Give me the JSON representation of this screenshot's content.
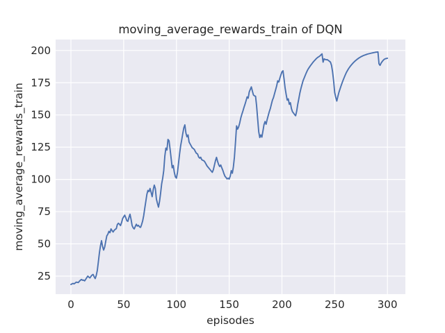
{
  "figure": {
    "background_color": "#ffffff",
    "axes_background_color": "#eaeaf2",
    "grid_color": "#ffffff",
    "text_color": "#262626"
  },
  "chart_data": {
    "type": "line",
    "title": "moving_average_rewards_train of DQN",
    "xlabel": "episodes",
    "ylabel": "moving_average_rewards_train",
    "grid": true,
    "legend": null,
    "x_ticks": [
      0,
      50,
      100,
      150,
      200,
      250,
      300
    ],
    "y_ticks": [
      25,
      50,
      75,
      100,
      125,
      150,
      175,
      200
    ],
    "xlim": [
      -14.5,
      317
    ],
    "ylim": [
      11,
      208.5
    ],
    "series": [
      {
        "name": "moving_average_rewards_train",
        "color": "#4c72b0",
        "points": [
          [
            0,
            18.5
          ],
          [
            1,
            19
          ],
          [
            2,
            19.3
          ],
          [
            3,
            19
          ],
          [
            4,
            19.6
          ],
          [
            5,
            20.3
          ],
          [
            6,
            20.2
          ],
          [
            7,
            20
          ],
          [
            8,
            21
          ],
          [
            9,
            21.8
          ],
          [
            10,
            22.4
          ],
          [
            11,
            21.8
          ],
          [
            12,
            21.9
          ],
          [
            13,
            21.3
          ],
          [
            14,
            22.5
          ],
          [
            15,
            23.8
          ],
          [
            16,
            25
          ],
          [
            17,
            24.2
          ],
          [
            18,
            23.6
          ],
          [
            19,
            24.8
          ],
          [
            20,
            25.8
          ],
          [
            21,
            26.3
          ],
          [
            22,
            24.5
          ],
          [
            23,
            23.1
          ],
          [
            24,
            25.5
          ],
          [
            25,
            29.4
          ],
          [
            26,
            36
          ],
          [
            27,
            43
          ],
          [
            28,
            48.5
          ],
          [
            29,
            52.5
          ],
          [
            30,
            48
          ],
          [
            31,
            45.2
          ],
          [
            32,
            47.5
          ],
          [
            33,
            52
          ],
          [
            34,
            56.2
          ],
          [
            35,
            57.5
          ],
          [
            36,
            59.7
          ],
          [
            37,
            58.7
          ],
          [
            38,
            61.6
          ],
          [
            39,
            60.3
          ],
          [
            40,
            59.2
          ],
          [
            41,
            60.5
          ],
          [
            42,
            61.3
          ],
          [
            43,
            61.8
          ],
          [
            44,
            65
          ],
          [
            45,
            66
          ],
          [
            46,
            65.3
          ],
          [
            47,
            64.2
          ],
          [
            48,
            66.5
          ],
          [
            49,
            69.6
          ],
          [
            50,
            71
          ],
          [
            51,
            72.3
          ],
          [
            52,
            70.3
          ],
          [
            53,
            68
          ],
          [
            54,
            67.5
          ],
          [
            55,
            70.5
          ],
          [
            56,
            73
          ],
          [
            57,
            69
          ],
          [
            58,
            64.2
          ],
          [
            59,
            62.5
          ],
          [
            60,
            61.6
          ],
          [
            61,
            63.5
          ],
          [
            62,
            65.2
          ],
          [
            63,
            63.8
          ],
          [
            64,
            64.4
          ],
          [
            65,
            63.2
          ],
          [
            66,
            62.8
          ],
          [
            67,
            65
          ],
          [
            68,
            67.8
          ],
          [
            69,
            72
          ],
          [
            70,
            77.7
          ],
          [
            71,
            83
          ],
          [
            72,
            88.4
          ],
          [
            73,
            91.5
          ],
          [
            74,
            90.5
          ],
          [
            75,
            93
          ],
          [
            76,
            90
          ],
          [
            77,
            86.6
          ],
          [
            78,
            92
          ],
          [
            79,
            95.6
          ],
          [
            80,
            93
          ],
          [
            81,
            84.8
          ],
          [
            82,
            81.5
          ],
          [
            83,
            78.5
          ],
          [
            84,
            83
          ],
          [
            85,
            89.3
          ],
          [
            86,
            96.5
          ],
          [
            87,
            101
          ],
          [
            88,
            107
          ],
          [
            89,
            118
          ],
          [
            90,
            124.3
          ],
          [
            91,
            122.8
          ],
          [
            92,
            131
          ],
          [
            93,
            130
          ],
          [
            94,
            123.4
          ],
          [
            95,
            116.2
          ],
          [
            96,
            109
          ],
          [
            97,
            110.8
          ],
          [
            98,
            105.5
          ],
          [
            99,
            102
          ],
          [
            100,
            101
          ],
          [
            101,
            105.5
          ],
          [
            102,
            112.6
          ],
          [
            103,
            119.8
          ],
          [
            104,
            126.1
          ],
          [
            105,
            130.6
          ],
          [
            106,
            135.5
          ],
          [
            107,
            140
          ],
          [
            108,
            142.3
          ],
          [
            109,
            136
          ],
          [
            110,
            133
          ],
          [
            111,
            134.5
          ],
          [
            112,
            129
          ],
          [
            113,
            127.5
          ],
          [
            114,
            126
          ],
          [
            115,
            124.5
          ],
          [
            116,
            124
          ],
          [
            117,
            123.2
          ],
          [
            118,
            121.5
          ],
          [
            119,
            120.2
          ],
          [
            120,
            119.8
          ],
          [
            121,
            117.5
          ],
          [
            122,
            116.5
          ],
          [
            123,
            117.2
          ],
          [
            124,
            115.3
          ],
          [
            125,
            114.8
          ],
          [
            126,
            114.5
          ],
          [
            127,
            113.5
          ],
          [
            128,
            112
          ],
          [
            129,
            110.5
          ],
          [
            130,
            109.5
          ],
          [
            131,
            108.5
          ],
          [
            132,
            107.5
          ],
          [
            133,
            106.5
          ],
          [
            134,
            105.5
          ],
          [
            135,
            107.5
          ],
          [
            136,
            111
          ],
          [
            137,
            114.5
          ],
          [
            138,
            117.1
          ],
          [
            139,
            114
          ],
          [
            140,
            111.5
          ],
          [
            141,
            110
          ],
          [
            142,
            111.2
          ],
          [
            143,
            109
          ],
          [
            144,
            107
          ],
          [
            145,
            104.5
          ],
          [
            146,
            102.5
          ],
          [
            147,
            101.5
          ],
          [
            148,
            100.4
          ],
          [
            149,
            100.9
          ],
          [
            150,
            100.3
          ],
          [
            151,
            102.5
          ],
          [
            152,
            106.8
          ],
          [
            153,
            104.8
          ],
          [
            154,
            109.8
          ],
          [
            155,
            117.5
          ],
          [
            156,
            129
          ],
          [
            157,
            141.5
          ],
          [
            158,
            139
          ],
          [
            159,
            140.8
          ],
          [
            160,
            143.8
          ],
          [
            161,
            147.6
          ],
          [
            162,
            150.5
          ],
          [
            163,
            153
          ],
          [
            164,
            155.8
          ],
          [
            165,
            158.3
          ],
          [
            166,
            161
          ],
          [
            167,
            164
          ],
          [
            168,
            163
          ],
          [
            169,
            167.8
          ],
          [
            170,
            169.8
          ],
          [
            171,
            171.8
          ],
          [
            172,
            168.5
          ],
          [
            173,
            165.5
          ],
          [
            174,
            164.8
          ],
          [
            175,
            164.5
          ],
          [
            176,
            157
          ],
          [
            177,
            147
          ],
          [
            178,
            137
          ],
          [
            179,
            132.5
          ],
          [
            180,
            134.5
          ],
          [
            181,
            132.8
          ],
          [
            182,
            137.5
          ],
          [
            183,
            142.5
          ],
          [
            184,
            144.9
          ],
          [
            185,
            142.8
          ],
          [
            186,
            146.5
          ],
          [
            187,
            149.5
          ],
          [
            188,
            152.5
          ],
          [
            189,
            155
          ],
          [
            190,
            158.3
          ],
          [
            191,
            161.5
          ],
          [
            192,
            163.5
          ],
          [
            193,
            166.5
          ],
          [
            194,
            169.5
          ],
          [
            195,
            172.5
          ],
          [
            196,
            176.5
          ],
          [
            197,
            175.5
          ],
          [
            198,
            178.5
          ],
          [
            199,
            181
          ],
          [
            200,
            183.4
          ],
          [
            201,
            184.3
          ],
          [
            202,
            178
          ],
          [
            203,
            171
          ],
          [
            204,
            166
          ],
          [
            205,
            161.5
          ],
          [
            206,
            162.5
          ],
          [
            207,
            158.3
          ],
          [
            208,
            159.5
          ],
          [
            209,
            155
          ],
          [
            210,
            152.5
          ],
          [
            211,
            151.5
          ],
          [
            212,
            150.3
          ],
          [
            213,
            149.4
          ],
          [
            214,
            153
          ],
          [
            215,
            158.3
          ],
          [
            216,
            162.5
          ],
          [
            217,
            167
          ],
          [
            218,
            170.5
          ],
          [
            219,
            173.5
          ],
          [
            220,
            176.5
          ],
          [
            221,
            178.5
          ],
          [
            222,
            180.5
          ],
          [
            223,
            182.5
          ],
          [
            224,
            184.3
          ],
          [
            225,
            185.8
          ],
          [
            226,
            187
          ],
          [
            227,
            188.2
          ],
          [
            228,
            189.3
          ],
          [
            229,
            190.4
          ],
          [
            230,
            191.4
          ],
          [
            231,
            192.3
          ],
          [
            232,
            193.2
          ],
          [
            233,
            194
          ],
          [
            234,
            194.7
          ],
          [
            235,
            195.2
          ],
          [
            236,
            195.8
          ],
          [
            237,
            196.6
          ],
          [
            238,
            197.4
          ],
          [
            239,
            191
          ],
          [
            240,
            193.5
          ],
          [
            241,
            193.1
          ],
          [
            242,
            192.8
          ],
          [
            243,
            192.9
          ],
          [
            244,
            192.3
          ],
          [
            245,
            191.7
          ],
          [
            246,
            191
          ],
          [
            247,
            188.5
          ],
          [
            248,
            183.5
          ],
          [
            249,
            176.5
          ],
          [
            250,
            167.5
          ],
          [
            251,
            163.7
          ],
          [
            252,
            160.8
          ],
          [
            253,
            164.3
          ],
          [
            254,
            167.5
          ],
          [
            255,
            170
          ],
          [
            256,
            172.5
          ],
          [
            257,
            174.8
          ],
          [
            258,
            177
          ],
          [
            259,
            179
          ],
          [
            260,
            181
          ],
          [
            261,
            182.8
          ],
          [
            262,
            184.3
          ],
          [
            263,
            185.7
          ],
          [
            264,
            186.9
          ],
          [
            265,
            188
          ],
          [
            266,
            189
          ],
          [
            267,
            189.9
          ],
          [
            268,
            190.8
          ],
          [
            269,
            191.6
          ],
          [
            270,
            192.3
          ],
          [
            271,
            193
          ],
          [
            272,
            193.6
          ],
          [
            273,
            194.2
          ],
          [
            274,
            194.7
          ],
          [
            275,
            195.2
          ],
          [
            276,
            195.6
          ],
          [
            277,
            196
          ],
          [
            278,
            196.3
          ],
          [
            279,
            196.6
          ],
          [
            280,
            196.9
          ],
          [
            281,
            197.2
          ],
          [
            282,
            197.4
          ],
          [
            283,
            197.6
          ],
          [
            284,
            197.8
          ],
          [
            285,
            198
          ],
          [
            286,
            198.2
          ],
          [
            287,
            198.4
          ],
          [
            288,
            198.5
          ],
          [
            289,
            198.7
          ],
          [
            290,
            198.8
          ],
          [
            291,
            198.9
          ],
          [
            292,
            189.7
          ],
          [
            293,
            188.5
          ],
          [
            294,
            190.2
          ],
          [
            295,
            191.4
          ],
          [
            296,
            192.4
          ],
          [
            297,
            193.2
          ],
          [
            298,
            193.6
          ],
          [
            299,
            193.8
          ],
          [
            300,
            194
          ]
        ]
      }
    ]
  }
}
